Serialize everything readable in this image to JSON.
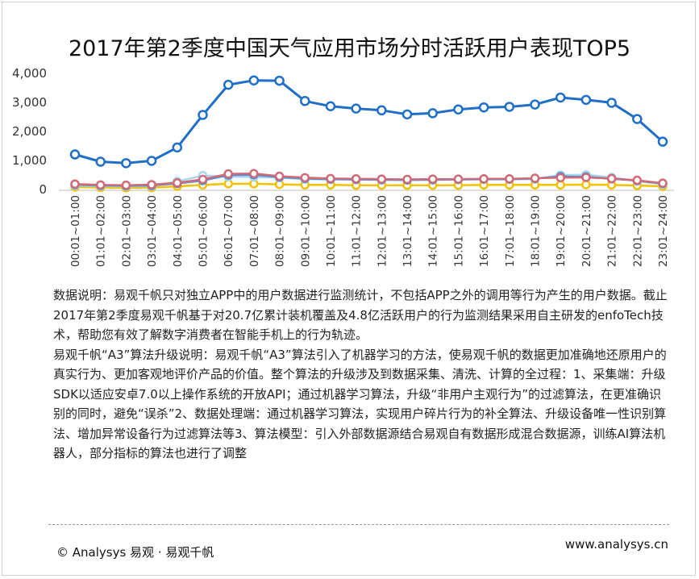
{
  "title": "2017年第2季度中国天气应用市场分时活跃用户表现TOP5",
  "notes": {
    "p1": "数据说明：易观千帆只对独立APP中的用户数据进行监测统计，不包括APP之外的调用等行为产生的用户数据。截止2017年第2季度易观千帆基于对20.7亿累计装机覆盖及4.8亿活跃用户的行为监测结果采用自主研发的enfoTech技术，帮助您有效了解数字消费者在智能手机上的行为轨迹。",
    "p2": "易观千帆“A3”算法升级说明：易观千帆“A3”算法引入了机器学习的方法，使易观千帆的数据更加准确地还原用户的真实行为、更加客观地评价产品的价值。整个算法的升级涉及到数据采集、清洗、计算的全过程：1、采集端：升级SDK以适应安卓7.0以上操作系统的开放API；通过机器学习算法，升级“非用户主观行为”的过滤算法，在更准确识别的同时，避免“误杀”2、数据处理端：通过机器学习算法，实现用户碎片行为的补全算法、升级设备唯一性识别算法、增加异常设备行为过滤算法等3、算法模型：引入外部数据源结合易观自有数据形成混合数据源，训练AI算法机器人，部分指标的算法也进行了调整"
  },
  "footer": {
    "copyright": "© Analysys 易观 · 易观千帆",
    "website": "www.analysys.cn"
  },
  "chart_data": {
    "type": "line",
    "title": "2017年第2季度中国天气应用市场分时活跃用户表现TOP5",
    "categories": [
      "00:01~01:00",
      "01:01~02:00",
      "02:01~03:00",
      "03:01~04:00",
      "04:01~05:00",
      "05:01~06:00",
      "06:01~07:00",
      "07:01~08:00",
      "08:01~09:00",
      "09:01~10:00",
      "10:01~11:00",
      "11:01~12:00",
      "12:01~13:00",
      "13:01~14:00",
      "14:01~15:00",
      "15:01~16:00",
      "16:01~17:00",
      "17:01~18:00",
      "18:01~19:00",
      "19:01~20:00",
      "20:01~21:00",
      "21:01~22:00",
      "22:01~23:00",
      "23:01~24:00"
    ],
    "ylim": [
      0,
      4000
    ],
    "yticks": [
      "0",
      "1,000",
      "2,000",
      "3,000",
      "4,000"
    ],
    "grid": false,
    "series": [
      {
        "color": "#1f6fc6",
        "values": [
          1180,
          930,
          880,
          960,
          1420,
          2540,
          3580,
          3730,
          3720,
          3020,
          2840,
          2760,
          2700,
          2560,
          2600,
          2730,
          2800,
          2820,
          2900,
          3140,
          3060,
          2960,
          2400,
          1620
        ]
      },
      {
        "color": "#d06a78",
        "values": [
          160,
          130,
          120,
          140,
          200,
          320,
          510,
          520,
          430,
          380,
          350,
          340,
          330,
          320,
          330,
          330,
          340,
          340,
          360,
          380,
          390,
          350,
          290,
          190
        ]
      },
      {
        "color": "#4f8fd6",
        "values": [
          140,
          110,
          100,
          110,
          180,
          280,
          470,
          480,
          400,
          350,
          330,
          320,
          310,
          300,
          310,
          320,
          330,
          330,
          350,
          420,
          410,
          340,
          280,
          180
        ]
      },
      {
        "color": "#a8d8ef",
        "values": [
          110,
          90,
          80,
          90,
          250,
          450,
          420,
          400,
          380,
          330,
          320,
          310,
          300,
          300,
          300,
          310,
          320,
          320,
          330,
          470,
          480,
          390,
          260,
          150
        ]
      },
      {
        "color": "#f2c200",
        "values": [
          60,
          40,
          30,
          40,
          80,
          130,
          170,
          170,
          150,
          130,
          130,
          120,
          120,
          120,
          120,
          120,
          130,
          130,
          130,
          130,
          140,
          130,
          110,
          80
        ]
      }
    ]
  }
}
